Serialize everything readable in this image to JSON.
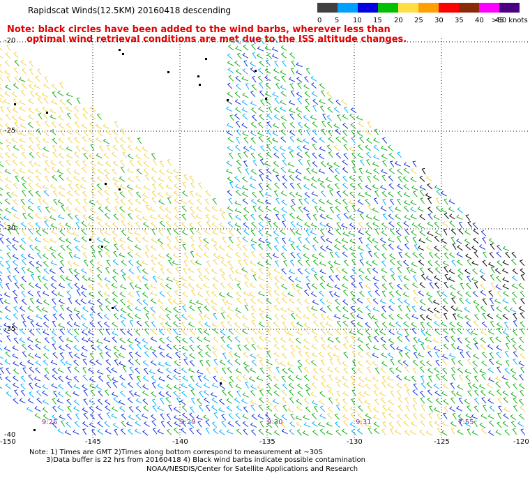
{
  "title": "Rapidscat Winds(12.5KM) 20160418 descending",
  "note_lines": [
    "Note: black circles have been added to the wind barbs, wherever less than",
    "optimal wind retrieval conditions are met due to the ISS altitude changes."
  ],
  "legend": {
    "colors": [
      "#404040",
      "#00a0ff",
      "#0000e0",
      "#00c000",
      "#ffdd44",
      "#ffa000",
      "#ff0000",
      "#8b2a0a",
      "#ff00ff",
      "#4b0082"
    ],
    "labels": [
      "0",
      "5",
      "10",
      "15",
      "20",
      "25",
      "30",
      "35",
      "40",
      "45",
      ">50 knots"
    ]
  },
  "lat_labels": [
    "-20",
    "-25",
    "-30",
    "-35",
    "-40"
  ],
  "lon_labels": [
    "-150",
    "-145",
    "-140",
    "-135",
    "-130",
    "-125",
    "-120"
  ],
  "time_labels": [
    "9:25",
    "9:29",
    "9:30",
    "9:31",
    "7:55"
  ],
  "footer": {
    "line1": "Note: 1) Times are GMT 2)Times along bottom correspond to measurement at ~30S",
    "line2": "3)Data buffer is 22 hrs from 20160418 4) Black wind barbs indicate possible contamination",
    "credit": "NOAA/NESDIS/Center for Satellite Applications and Research"
  }
}
